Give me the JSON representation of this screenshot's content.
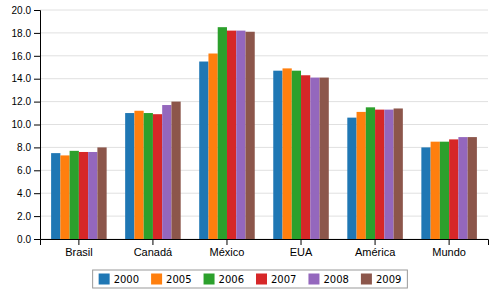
{
  "chart_data": {
    "type": "bar",
    "categories": [
      "Brasil",
      "Canadá",
      "México",
      "EUA",
      "América",
      "Mundo"
    ],
    "series": [
      {
        "name": "2000",
        "values": [
          7.5,
          11.0,
          15.5,
          14.7,
          10.6,
          8.0
        ]
      },
      {
        "name": "2005",
        "values": [
          7.3,
          11.2,
          16.2,
          14.9,
          11.1,
          8.5
        ]
      },
      {
        "name": "2006",
        "values": [
          7.7,
          11.0,
          18.5,
          14.7,
          11.5,
          8.5
        ]
      },
      {
        "name": "2007",
        "values": [
          7.6,
          10.9,
          18.2,
          14.3,
          11.3,
          8.7
        ]
      },
      {
        "name": "2008",
        "values": [
          7.6,
          11.7,
          18.2,
          14.1,
          11.3,
          8.9
        ]
      },
      {
        "name": "2009",
        "values": [
          8.0,
          12.0,
          18.1,
          14.1,
          11.4,
          8.9
        ]
      }
    ],
    "ylim": [
      0,
      20.0
    ],
    "yticks": [
      {
        "value": 0.0,
        "label": "0.0"
      },
      {
        "value": 2.0,
        "label": "2.0"
      },
      {
        "value": 4.0,
        "label": "4.0"
      },
      {
        "value": 6.0,
        "label": "6.0"
      },
      {
        "value": 8.0,
        "label": "8.0"
      },
      {
        "value": 10.0,
        "label": "10.0"
      },
      {
        "value": 12.0,
        "label": "12.0"
      },
      {
        "value": 14.0,
        "label": "14.0"
      },
      {
        "value": 16.0,
        "label": "16.0"
      },
      {
        "value": 18.0,
        "label": "18.0"
      },
      {
        "value": 20.0,
        "label": "20.0"
      }
    ],
    "grid": true,
    "legend": "bottom"
  }
}
